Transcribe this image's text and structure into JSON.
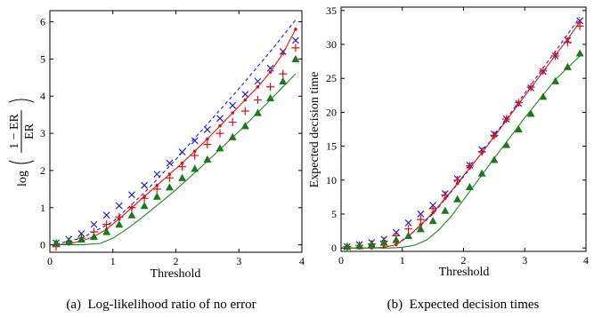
{
  "chart_data": [
    {
      "type": "scatter",
      "title": "",
      "xlabel": "Threshold",
      "ylabel": "log((1 − ER)/ER)",
      "ylabel_parts": {
        "fn": "log",
        "numerator": "1 − ER",
        "denominator": "ER"
      },
      "caption": "(a)  Log-likelihood ratio of no error",
      "xlim": [
        0,
        4
      ],
      "ylim": [
        -0.2,
        6.3
      ],
      "xticks": [
        "0",
        "1",
        "2",
        "3",
        "4"
      ],
      "yticks": [
        "0",
        "1",
        "2",
        "3",
        "4",
        "5",
        "6"
      ],
      "xticks_values": [
        0,
        1,
        2,
        3,
        4
      ],
      "yticks_values": [
        0,
        1,
        2,
        3,
        4,
        5,
        6
      ],
      "grid": false,
      "legend": "none",
      "series": [
        {
          "style": "dashed-line",
          "color": "#1f1fcc",
          "x": [
            0.1,
            0.5,
            1.0,
            1.5,
            2.0,
            2.5,
            3.0,
            3.5,
            3.9
          ],
          "y": [
            0.02,
            0.18,
            0.62,
            1.4,
            2.3,
            3.25,
            4.2,
            5.2,
            6.05
          ]
        },
        {
          "style": "x-markers",
          "color": "#1f1fcc",
          "x": [
            0.1,
            0.3,
            0.5,
            0.7,
            0.9,
            1.1,
            1.3,
            1.5,
            1.7,
            1.9,
            2.1,
            2.3,
            2.5,
            2.7,
            2.9,
            3.1,
            3.3,
            3.5,
            3.7,
            3.9
          ],
          "y": [
            0.05,
            0.15,
            0.3,
            0.55,
            0.8,
            1.05,
            1.35,
            1.6,
            1.9,
            2.2,
            2.5,
            2.8,
            3.1,
            3.4,
            3.75,
            4.05,
            4.4,
            4.75,
            5.2,
            5.5
          ]
        },
        {
          "style": "line-with-dots",
          "color": "#dd1111",
          "x": [
            0.1,
            0.3,
            0.5,
            0.7,
            0.9,
            1.1,
            1.3,
            1.5,
            1.7,
            1.9,
            2.1,
            2.3,
            2.5,
            2.7,
            2.9,
            3.1,
            3.3,
            3.5,
            3.7,
            3.9
          ],
          "y": [
            0.0,
            0.03,
            0.1,
            0.22,
            0.42,
            0.7,
            1.0,
            1.3,
            1.6,
            1.9,
            2.2,
            2.52,
            2.85,
            3.2,
            3.55,
            3.9,
            4.25,
            4.65,
            5.15,
            5.8
          ]
        },
        {
          "style": "plus-markers",
          "color": "#dd1111",
          "x": [
            0.1,
            0.3,
            0.5,
            0.7,
            0.9,
            1.1,
            1.3,
            1.5,
            1.7,
            1.9,
            2.1,
            2.3,
            2.5,
            2.7,
            2.9,
            3.1,
            3.3,
            3.5,
            3.7,
            3.9
          ],
          "y": [
            -0.05,
            0.08,
            0.18,
            0.35,
            0.55,
            0.75,
            1.0,
            1.25,
            1.5,
            1.8,
            2.1,
            2.4,
            2.7,
            3.0,
            3.3,
            3.6,
            3.9,
            4.25,
            4.6,
            5.3
          ]
        },
        {
          "style": "solid-line",
          "color": "#1a8a1a",
          "x": [
            0.1,
            0.5,
            0.8,
            1.0,
            1.2,
            1.4,
            1.6,
            1.8,
            2.0,
            2.5,
            3.0,
            3.5,
            3.9
          ],
          "y": [
            0.0,
            0.0,
            0.04,
            0.18,
            0.4,
            0.65,
            0.92,
            1.2,
            1.48,
            2.25,
            3.05,
            3.9,
            4.6
          ]
        },
        {
          "style": "triangle-markers",
          "color": "#1a7a1a",
          "x": [
            0.1,
            0.3,
            0.5,
            0.7,
            0.9,
            1.1,
            1.3,
            1.5,
            1.7,
            1.9,
            2.1,
            2.3,
            2.5,
            2.7,
            2.9,
            3.1,
            3.3,
            3.5,
            3.7,
            3.9
          ],
          "y": [
            0.05,
            0.08,
            0.15,
            0.22,
            0.35,
            0.55,
            0.8,
            1.05,
            1.3,
            1.55,
            1.8,
            2.05,
            2.3,
            2.6,
            2.9,
            3.2,
            3.55,
            3.95,
            4.4,
            5.0
          ]
        }
      ]
    },
    {
      "type": "scatter",
      "title": "",
      "xlabel": "Threshold",
      "ylabel": "Expected decision time",
      "caption": "(b)  Expected decision times",
      "xlim": [
        0,
        4
      ],
      "ylim": [
        -0.5,
        35.5
      ],
      "xticks": [
        "0",
        "1",
        "2",
        "3",
        "4"
      ],
      "yticks": [
        "0",
        "5",
        "10",
        "15",
        "20",
        "25",
        "30",
        "35"
      ],
      "xticks_values": [
        0,
        1,
        2,
        3,
        4
      ],
      "yticks_values": [
        0,
        5,
        10,
        15,
        20,
        25,
        30,
        35
      ],
      "grid": false,
      "legend": "none",
      "series": [
        {
          "style": "dashed-line",
          "color": "#1f1fcc",
          "x": [
            0.9,
            1.2,
            1.5,
            2.0,
            2.5,
            3.0,
            3.5,
            3.9
          ],
          "y": [
            0.5,
            2.5,
            5.0,
            10.5,
            16.5,
            22.8,
            29.0,
            34.0
          ]
        },
        {
          "style": "x-markers",
          "color": "#1f1fcc",
          "x": [
            0.1,
            0.3,
            0.5,
            0.7,
            0.9,
            1.1,
            1.3,
            1.5,
            1.7,
            1.9,
            2.1,
            2.3,
            2.5,
            2.7,
            2.9,
            3.1,
            3.3,
            3.5,
            3.7,
            3.9
          ],
          "y": [
            0.2,
            0.5,
            0.8,
            1.3,
            2.3,
            3.7,
            5.0,
            6.3,
            8.0,
            10.2,
            12.2,
            14.5,
            16.8,
            19.0,
            21.3,
            23.6,
            26.0,
            28.3,
            30.6,
            33.5
          ]
        },
        {
          "style": "line-with-dots",
          "color": "#dd1111",
          "x": [
            0.1,
            0.3,
            0.5,
            0.7,
            0.9,
            1.1,
            1.3,
            1.5,
            1.7,
            1.9,
            2.1,
            2.3,
            2.5,
            2.7,
            2.9,
            3.1,
            3.3,
            3.5,
            3.7,
            3.9
          ],
          "y": [
            0.0,
            0.0,
            0.0,
            0.1,
            0.5,
            1.7,
            3.4,
            5.2,
            7.3,
            9.5,
            11.8,
            14.0,
            16.4,
            18.8,
            21.2,
            23.6,
            26.0,
            28.4,
            30.8,
            33.3
          ]
        },
        {
          "style": "plus-markers",
          "color": "#dd1111",
          "x": [
            0.1,
            0.3,
            0.5,
            0.7,
            0.9,
            1.1,
            1.3,
            1.5,
            1.7,
            1.9,
            2.1,
            2.3,
            2.5,
            2.7,
            2.9,
            3.1,
            3.3,
            3.5,
            3.7,
            3.9
          ],
          "y": [
            0.2,
            0.4,
            0.6,
            1.0,
            1.8,
            2.8,
            4.2,
            5.8,
            7.8,
            10.0,
            12.1,
            14.2,
            16.6,
            19.0,
            21.4,
            23.7,
            26.1,
            28.3,
            30.3,
            32.7
          ]
        },
        {
          "style": "solid-line",
          "color": "#1a8a1a",
          "x": [
            0.1,
            0.8,
            1.0,
            1.2,
            1.4,
            1.6,
            1.8,
            2.0,
            2.5,
            3.0,
            3.5,
            3.9
          ],
          "y": [
            0.0,
            0.0,
            0.1,
            0.4,
            1.2,
            2.7,
            4.7,
            7.1,
            13.2,
            19.2,
            24.8,
            28.3
          ]
        },
        {
          "style": "triangle-markers",
          "color": "#1a7a1a",
          "x": [
            0.1,
            0.3,
            0.5,
            0.7,
            0.9,
            1.1,
            1.3,
            1.5,
            1.7,
            1.9,
            2.1,
            2.3,
            2.5,
            2.7,
            2.9,
            3.1,
            3.3,
            3.5,
            3.7,
            3.9
          ],
          "y": [
            0.2,
            0.3,
            0.5,
            0.8,
            1.2,
            1.8,
            2.8,
            4.0,
            5.5,
            7.2,
            9.0,
            11.0,
            13.0,
            15.2,
            17.5,
            19.8,
            22.3,
            24.6,
            26.7,
            28.7
          ]
        }
      ]
    }
  ]
}
